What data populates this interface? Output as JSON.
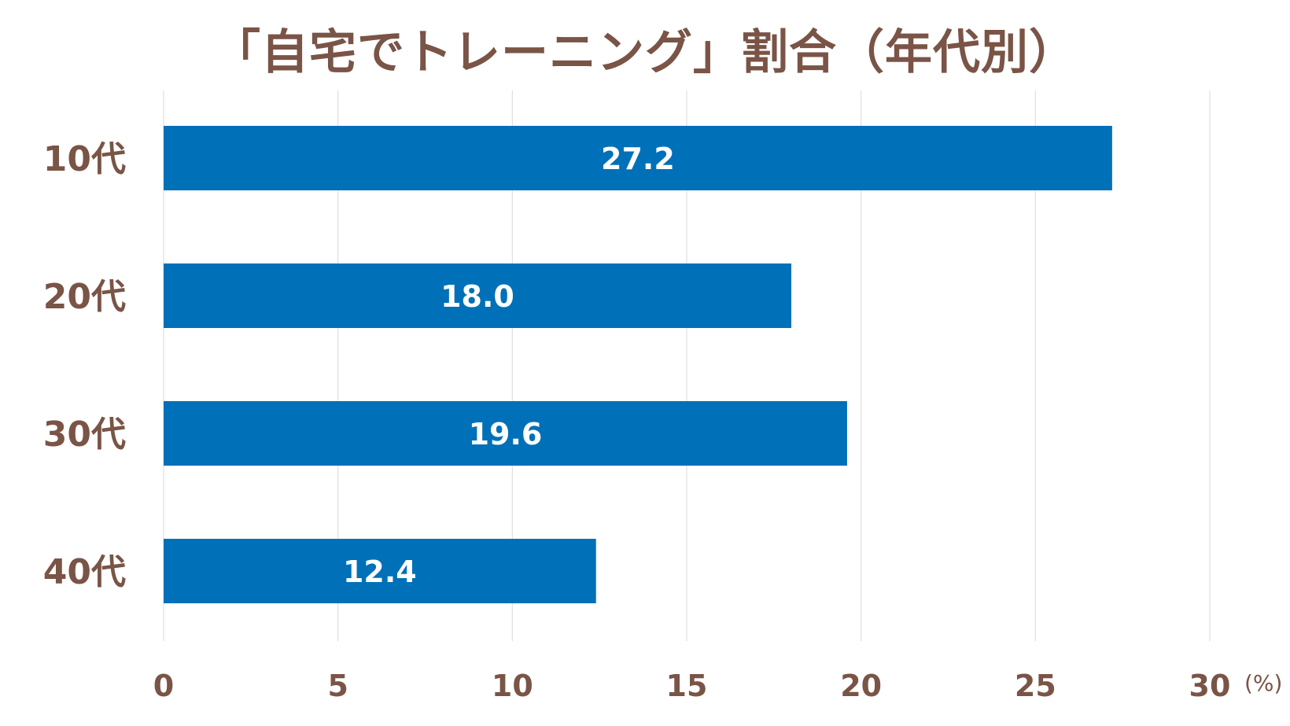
{
  "colors": {
    "bar": "#0070b8",
    "text": "#7a5446",
    "grid": "#d9d9d9",
    "data_label": "#ffffff"
  },
  "chart_data": {
    "type": "bar",
    "orientation": "horizontal",
    "title": "「自宅でトレーニング」割合（年代別）",
    "categories": [
      "10代",
      "20代",
      "30代",
      "40代"
    ],
    "values": [
      27.2,
      18.0,
      19.6,
      12.4
    ],
    "data_labels": [
      "27.2",
      "18.0",
      "19.6",
      "12.4"
    ],
    "xlim": [
      0,
      30
    ],
    "xticks": [
      0,
      5,
      10,
      15,
      20,
      25,
      30
    ],
    "x_unit": "(%)",
    "grid": true,
    "legend": "none"
  }
}
